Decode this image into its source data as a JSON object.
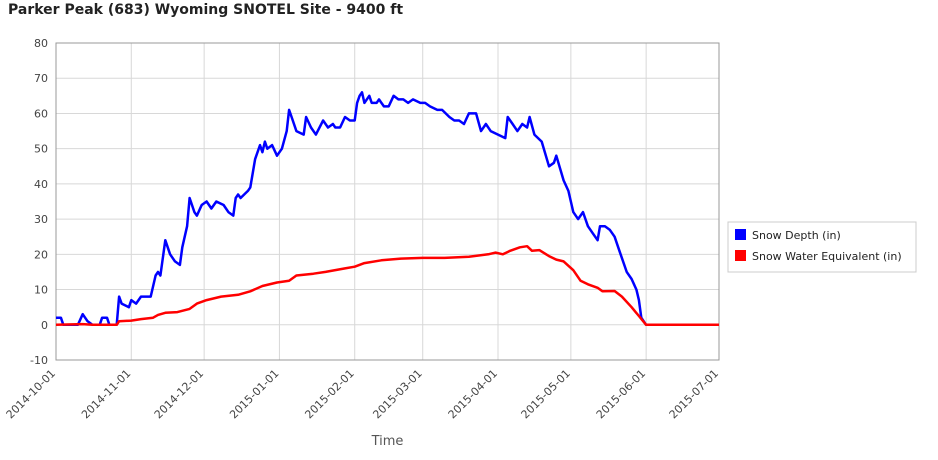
{
  "chart_data": {
    "type": "line",
    "title": "Parker Peak (683) Wyoming  SNOTEL Site - 9400 ft",
    "xlabel": "Time",
    "ylabel": "",
    "ylim": [
      -10,
      80
    ],
    "yticks": [
      -10,
      0,
      10,
      20,
      30,
      40,
      50,
      60,
      70,
      80
    ],
    "xlim": [
      "2014-10-01",
      "2015-07-01"
    ],
    "xticks": [
      "2014-10-01",
      "2014-11-01",
      "2014-12-01",
      "2015-01-01",
      "2015-02-01",
      "2015-03-01",
      "2015-04-01",
      "2015-05-01",
      "2015-06-01",
      "2015-07-01"
    ],
    "grid": true,
    "legend_position": "right",
    "series": [
      {
        "name": "Snow Depth (in)",
        "color": "#0000ff",
        "points": [
          [
            "2014-10-01",
            2
          ],
          [
            "2014-10-03",
            2
          ],
          [
            "2014-10-04",
            0
          ],
          [
            "2014-10-10",
            0
          ],
          [
            "2014-10-12",
            3
          ],
          [
            "2014-10-14",
            1
          ],
          [
            "2014-10-16",
            0
          ],
          [
            "2014-10-19",
            0
          ],
          [
            "2014-10-20",
            2
          ],
          [
            "2014-10-22",
            2
          ],
          [
            "2014-10-23",
            0
          ],
          [
            "2014-10-26",
            0
          ],
          [
            "2014-10-27",
            8
          ],
          [
            "2014-10-28",
            6
          ],
          [
            "2014-10-31",
            5
          ],
          [
            "2014-11-01",
            7
          ],
          [
            "2014-11-03",
            6
          ],
          [
            "2014-11-05",
            8
          ],
          [
            "2014-11-09",
            8
          ],
          [
            "2014-11-11",
            14
          ],
          [
            "2014-11-12",
            15
          ],
          [
            "2014-11-13",
            14
          ],
          [
            "2014-11-15",
            24
          ],
          [
            "2014-11-17",
            20
          ],
          [
            "2014-11-19",
            18
          ],
          [
            "2014-11-21",
            17
          ],
          [
            "2014-11-22",
            22
          ],
          [
            "2014-11-24",
            28
          ],
          [
            "2014-11-25",
            36
          ],
          [
            "2014-11-27",
            32
          ],
          [
            "2014-11-28",
            31
          ],
          [
            "2014-11-30",
            34
          ],
          [
            "2014-12-02",
            35
          ],
          [
            "2014-12-04",
            33
          ],
          [
            "2014-12-06",
            35
          ],
          [
            "2014-12-09",
            34
          ],
          [
            "2014-12-11",
            32
          ],
          [
            "2014-12-13",
            31
          ],
          [
            "2014-12-14",
            36
          ],
          [
            "2014-12-15",
            37
          ],
          [
            "2014-12-16",
            36
          ],
          [
            "2014-12-19",
            38
          ],
          [
            "2014-12-20",
            39
          ],
          [
            "2014-12-22",
            47
          ],
          [
            "2014-12-24",
            51
          ],
          [
            "2014-12-25",
            49
          ],
          [
            "2014-12-26",
            52
          ],
          [
            "2014-12-27",
            50
          ],
          [
            "2014-12-29",
            51
          ],
          [
            "2014-12-31",
            48
          ],
          [
            "2015-01-02",
            50
          ],
          [
            "2015-01-04",
            55
          ],
          [
            "2015-01-05",
            61
          ],
          [
            "2015-01-06",
            59
          ],
          [
            "2015-01-08",
            55
          ],
          [
            "2015-01-11",
            54
          ],
          [
            "2015-01-12",
            59
          ],
          [
            "2015-01-14",
            56
          ],
          [
            "2015-01-16",
            54
          ],
          [
            "2015-01-19",
            58
          ],
          [
            "2015-01-21",
            56
          ],
          [
            "2015-01-23",
            57
          ],
          [
            "2015-01-24",
            56
          ],
          [
            "2015-01-26",
            56
          ],
          [
            "2015-01-28",
            59
          ],
          [
            "2015-01-30",
            58
          ],
          [
            "2015-02-01",
            58
          ],
          [
            "2015-02-02",
            63
          ],
          [
            "2015-02-03",
            65
          ],
          [
            "2015-02-04",
            66
          ],
          [
            "2015-02-05",
            63
          ],
          [
            "2015-02-07",
            65
          ],
          [
            "2015-02-08",
            63
          ],
          [
            "2015-02-10",
            63
          ],
          [
            "2015-02-11",
            64
          ],
          [
            "2015-02-13",
            62
          ],
          [
            "2015-02-15",
            62
          ],
          [
            "2015-02-17",
            65
          ],
          [
            "2015-02-19",
            64
          ],
          [
            "2015-02-21",
            64
          ],
          [
            "2015-02-23",
            63
          ],
          [
            "2015-02-25",
            64
          ],
          [
            "2015-02-28",
            63
          ],
          [
            "2015-03-02",
            63
          ],
          [
            "2015-03-04",
            62
          ],
          [
            "2015-03-07",
            61
          ],
          [
            "2015-03-09",
            61
          ],
          [
            "2015-03-12",
            59
          ],
          [
            "2015-03-14",
            58
          ],
          [
            "2015-03-16",
            58
          ],
          [
            "2015-03-18",
            57
          ],
          [
            "2015-03-20",
            60
          ],
          [
            "2015-03-23",
            60
          ],
          [
            "2015-03-25",
            55
          ],
          [
            "2015-03-27",
            57
          ],
          [
            "2015-03-29",
            55
          ],
          [
            "2015-04-01",
            54
          ],
          [
            "2015-04-04",
            53
          ],
          [
            "2015-04-05",
            59
          ],
          [
            "2015-04-07",
            57
          ],
          [
            "2015-04-09",
            55
          ],
          [
            "2015-04-11",
            57
          ],
          [
            "2015-04-13",
            56
          ],
          [
            "2015-04-14",
            59
          ],
          [
            "2015-04-16",
            54
          ],
          [
            "2015-04-19",
            52
          ],
          [
            "2015-04-22",
            45
          ],
          [
            "2015-04-24",
            46
          ],
          [
            "2015-04-25",
            48
          ],
          [
            "2015-04-28",
            41
          ],
          [
            "2015-04-30",
            38
          ],
          [
            "2015-05-02",
            32
          ],
          [
            "2015-05-04",
            30
          ],
          [
            "2015-05-06",
            32
          ],
          [
            "2015-05-08",
            28
          ],
          [
            "2015-05-10",
            26
          ],
          [
            "2015-05-12",
            24
          ],
          [
            "2015-05-13",
            28
          ],
          [
            "2015-05-15",
            28
          ],
          [
            "2015-05-17",
            27
          ],
          [
            "2015-05-19",
            25
          ],
          [
            "2015-05-21",
            21
          ],
          [
            "2015-05-24",
            15
          ],
          [
            "2015-05-26",
            13
          ],
          [
            "2015-05-28",
            10
          ],
          [
            "2015-05-29",
            7
          ],
          [
            "2015-05-30",
            2
          ],
          [
            "2015-06-01",
            0
          ],
          [
            "2015-07-01",
            0
          ]
        ]
      },
      {
        "name": "Snow Water Equivalent (in)",
        "color": "#ff0000",
        "points": [
          [
            "2014-10-01",
            0
          ],
          [
            "2014-10-12",
            0.2
          ],
          [
            "2014-10-16",
            0
          ],
          [
            "2014-10-26",
            0
          ],
          [
            "2014-10-27",
            1
          ],
          [
            "2014-11-01",
            1.2
          ],
          [
            "2014-11-05",
            1.6
          ],
          [
            "2014-11-10",
            2
          ],
          [
            "2014-11-12",
            2.8
          ],
          [
            "2014-11-15",
            3.4
          ],
          [
            "2014-11-20",
            3.6
          ],
          [
            "2014-11-25",
            4.5
          ],
          [
            "2014-11-28",
            6
          ],
          [
            "2014-12-02",
            7
          ],
          [
            "2014-12-08",
            8
          ],
          [
            "2014-12-15",
            8.5
          ],
          [
            "2014-12-20",
            9.5
          ],
          [
            "2014-12-25",
            11
          ],
          [
            "2014-12-31",
            12
          ],
          [
            "2015-01-05",
            12.5
          ],
          [
            "2015-01-08",
            14
          ],
          [
            "2015-01-15",
            14.5
          ],
          [
            "2015-01-20",
            15
          ],
          [
            "2015-01-28",
            16
          ],
          [
            "2015-02-01",
            16.5
          ],
          [
            "2015-02-05",
            17.5
          ],
          [
            "2015-02-12",
            18.3
          ],
          [
            "2015-02-20",
            18.8
          ],
          [
            "2015-03-01",
            19
          ],
          [
            "2015-03-10",
            19
          ],
          [
            "2015-03-20",
            19.3
          ],
          [
            "2015-03-28",
            20
          ],
          [
            "2015-03-31",
            20.5
          ],
          [
            "2015-04-03",
            20
          ],
          [
            "2015-04-06",
            21
          ],
          [
            "2015-04-10",
            22
          ],
          [
            "2015-04-13",
            22.3
          ],
          [
            "2015-04-15",
            21
          ],
          [
            "2015-04-18",
            21.2
          ],
          [
            "2015-04-22",
            19.5
          ],
          [
            "2015-04-25",
            18.5
          ],
          [
            "2015-04-28",
            18
          ],
          [
            "2015-05-02",
            15.5
          ],
          [
            "2015-05-05",
            12.5
          ],
          [
            "2015-05-08",
            11.5
          ],
          [
            "2015-05-12",
            10.5
          ],
          [
            "2015-05-14",
            9.5
          ],
          [
            "2015-05-19",
            9.6
          ],
          [
            "2015-05-22",
            8
          ],
          [
            "2015-05-26",
            5
          ],
          [
            "2015-05-29",
            2.5
          ],
          [
            "2015-06-01",
            0
          ],
          [
            "2015-07-01",
            0
          ]
        ]
      }
    ]
  }
}
